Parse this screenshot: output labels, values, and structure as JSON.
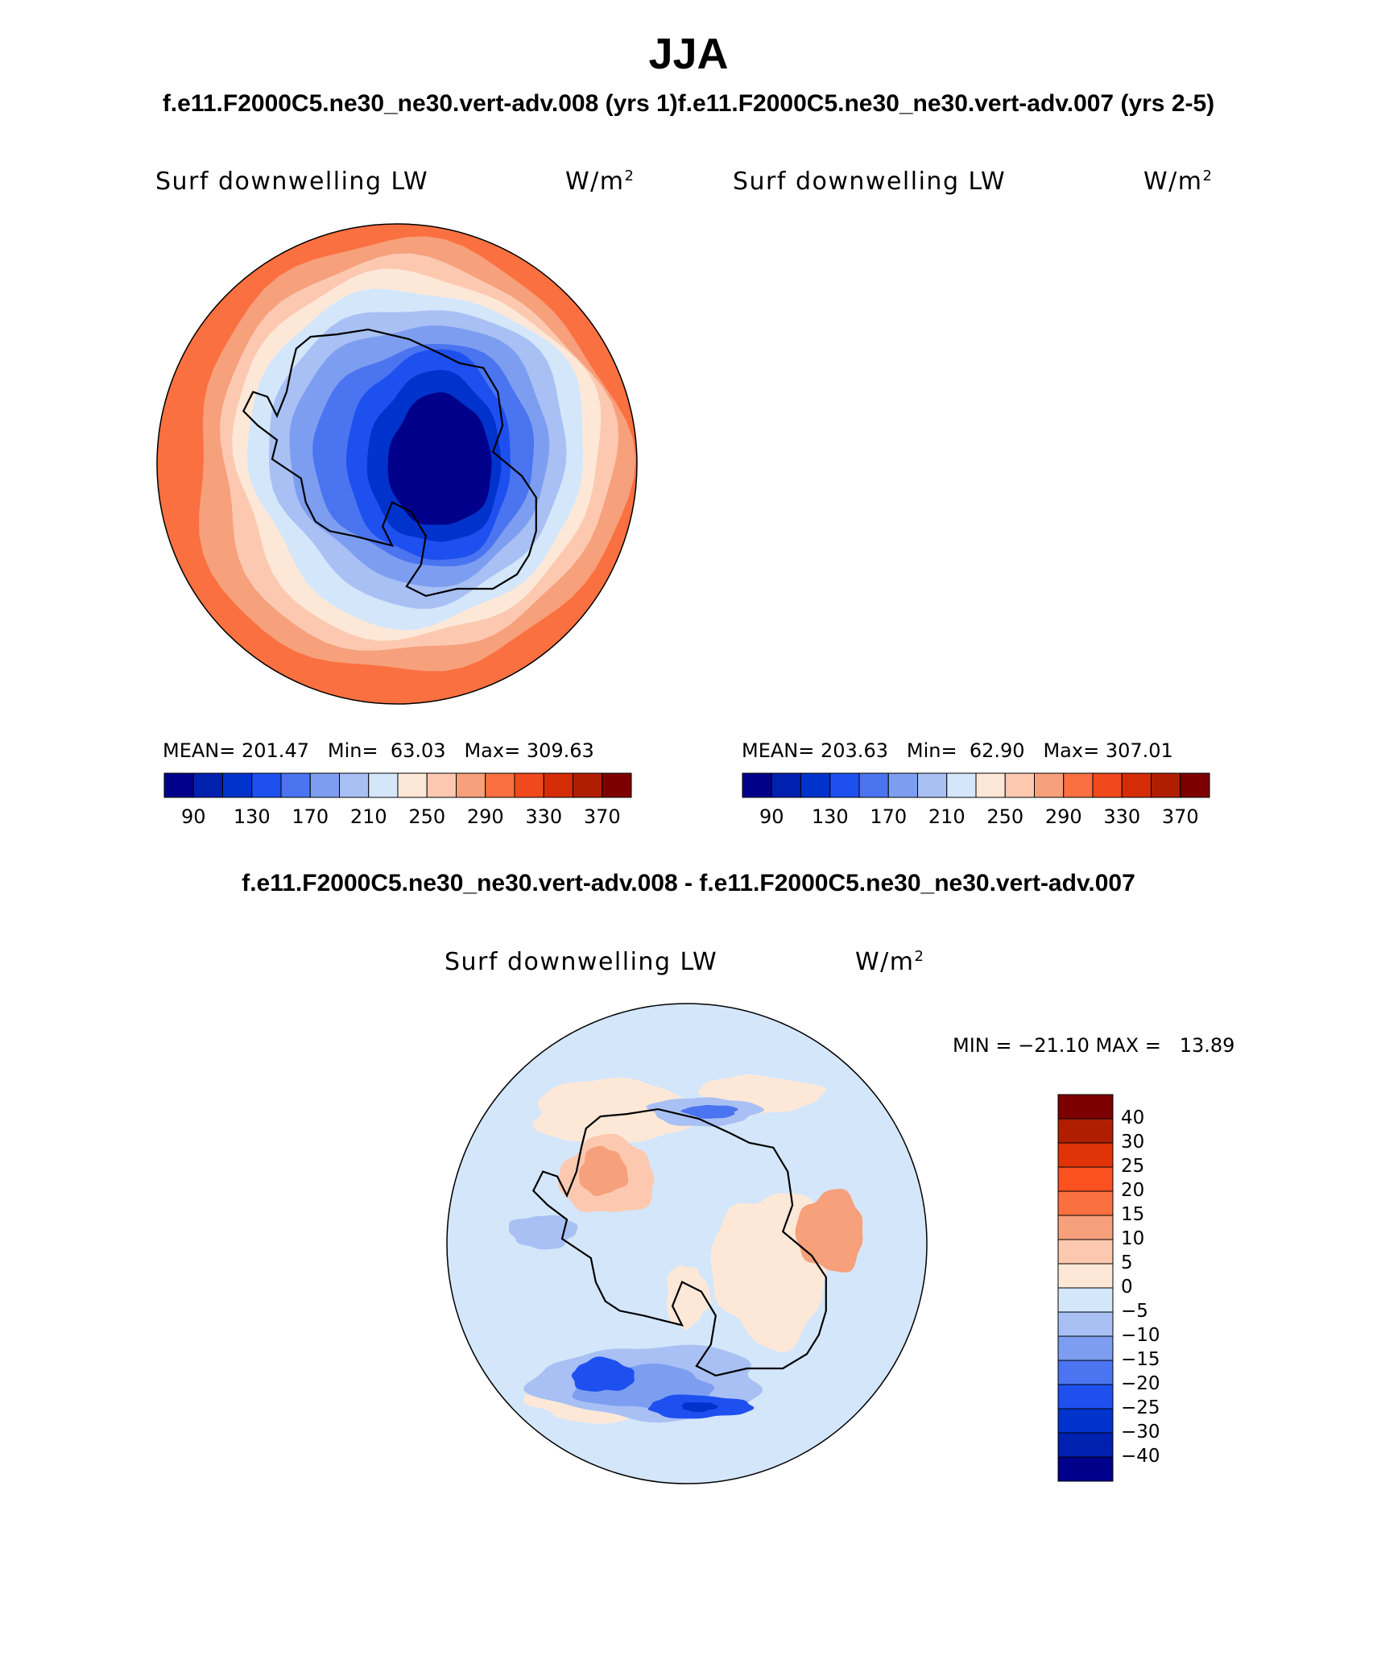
{
  "figure": {
    "season": "JJA",
    "case_a_title": "f.e11.F2000C5.ne30_ne30.vert-adv.008 (yrs 1)",
    "case_b_title": "f.e11.F2000C5.ne30_ne30.vert-adv.007 (yrs 2-5)",
    "diff_title": "f.e11.F2000C5.ne30_ne30.vert-adv.008 - f.e11.F2000C5.ne30_ne30.vert-adv.007"
  },
  "panels": [
    {
      "variable": "Surf downwelling LW",
      "units_base": "W/m",
      "units_exp": "2",
      "mean_label": "MEAN=",
      "mean": "201.47",
      "min_label": "Min=",
      "min": "63.03",
      "max_label": "Max=",
      "max": "309.63"
    },
    {
      "variable": "Surf downwelling LW",
      "units_base": "W/m",
      "units_exp": "2",
      "mean_label": "MEAN=",
      "mean": "203.63",
      "min_label": "Min=",
      "min": "62.90",
      "max_label": "Max=",
      "max": "307.01"
    }
  ],
  "diff_panel": {
    "variable": "Surf downwelling LW",
    "units_base": "W/m",
    "units_exp": "2",
    "minmax_text": "MIN = −21.10 MAX =   13.89"
  },
  "abs_colorbar": {
    "colors": [
      "#00008b",
      "#0020b0",
      "#0033cc",
      "#1e50f0",
      "#4a74f0",
      "#7d9ef0",
      "#a8c0f4",
      "#d4e6fa",
      "#fde8d8",
      "#fcc9b0",
      "#f6a07c",
      "#fb7040",
      "#f04a1c",
      "#d52c08",
      "#b01e02",
      "#7d0000"
    ],
    "tick_labels": [
      "90",
      "130",
      "170",
      "210",
      "250",
      "290",
      "330",
      "370"
    ]
  },
  "diff_colorbar": {
    "colors_top_to_bottom": [
      "#7d0000",
      "#b01e02",
      "#e03408",
      "#fb5020",
      "#fb7040",
      "#f6a07c",
      "#fcc9b0",
      "#fde8d8",
      "#d4e6fa",
      "#a8c0f4",
      "#7d9ef0",
      "#4a74f0",
      "#1e50f0",
      "#0033cc",
      "#0020b0",
      "#00008b"
    ],
    "tick_labels_top_to_bottom": [
      "40",
      "30",
      "25",
      "20",
      "15",
      "10",
      "5",
      "0",
      "−5",
      "−10",
      "−15",
      "−20",
      "−25",
      "−30",
      "−40"
    ]
  },
  "map_fill_colors": {
    "ring_outer": "#fb7040",
    "ring_2": "#f6a07c",
    "ring_3": "#fcc9b0",
    "ring_4": "#fde8d8",
    "ring_5": "#d4e6fa",
    "ring_6": "#a8c0f4",
    "ring_7": "#7d9ef0",
    "ring_8": "#4a74f0",
    "ring_9": "#1e50f0",
    "ring_10": "#0033cc",
    "core": "#00008b",
    "coastline": "#000000"
  }
}
